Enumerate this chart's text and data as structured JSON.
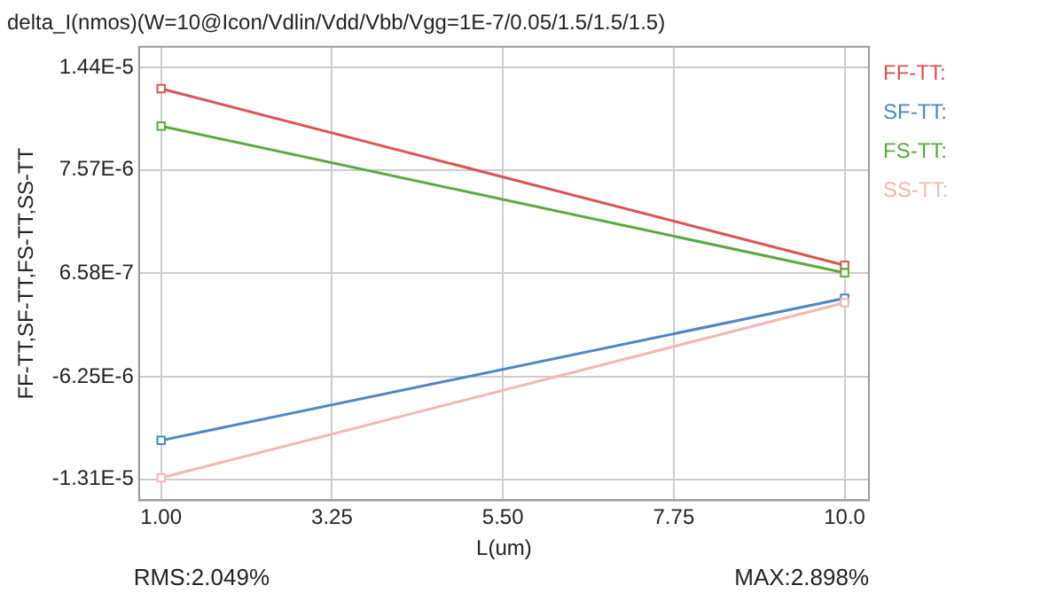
{
  "chart_data": {
    "type": "line",
    "title": "delta_I(nmos)(W=10@Icon/Vdlin/Vdd/Vbb/Vgg=1E-7/0.05/1.5/1.5/1.5)",
    "xlabel": "L(um)",
    "ylabel": "FF-TT,SF-TT,FS-TT,SS-TT",
    "x": [
      1,
      10
    ],
    "series": [
      {
        "name": "FF-TT:",
        "color": "#e05050",
        "values": [
          1.3e-05,
          1.2e-06
        ]
      },
      {
        "name": "SF-TT:",
        "color": "#4a86c8",
        "values": [
          -1.05e-05,
          -1e-06
        ]
      },
      {
        "name": "FS-TT:",
        "color": "#5aaa3c",
        "values": [
          1.05e-05,
          7e-07
        ]
      },
      {
        "name": "SS-TT:",
        "color": "#f4b8b0",
        "values": [
          -1.3e-05,
          -1.3e-06
        ]
      }
    ],
    "xlim": [
      0.71,
      10.32
    ],
    "xticks": [
      {
        "value": 1,
        "label": "1.00"
      },
      3.25,
      {
        "value": 5.5,
        "label": "5.50"
      },
      7.75,
      {
        "value": 10,
        "label": "10.0"
      }
    ],
    "ylim": [
      -1.45e-05,
      1.58e-05
    ],
    "yticks": [
      {
        "value": -1.31e-05,
        "label": "-1.31E-5"
      },
      {
        "value": -6.25e-06,
        "label": "-6.25E-6"
      },
      {
        "value": 6.58e-07,
        "label": "6.58E-7"
      },
      {
        "value": 7.57e-06,
        "label": "7.57E-6"
      },
      {
        "value": 1.44e-05,
        "label": "1.44E-5"
      }
    ],
    "annotations": [
      "RMS:2.049%",
      "MAX:2.898%"
    ],
    "grid": true,
    "legend": "right",
    "marker": "square",
    "line_style": "solid"
  }
}
